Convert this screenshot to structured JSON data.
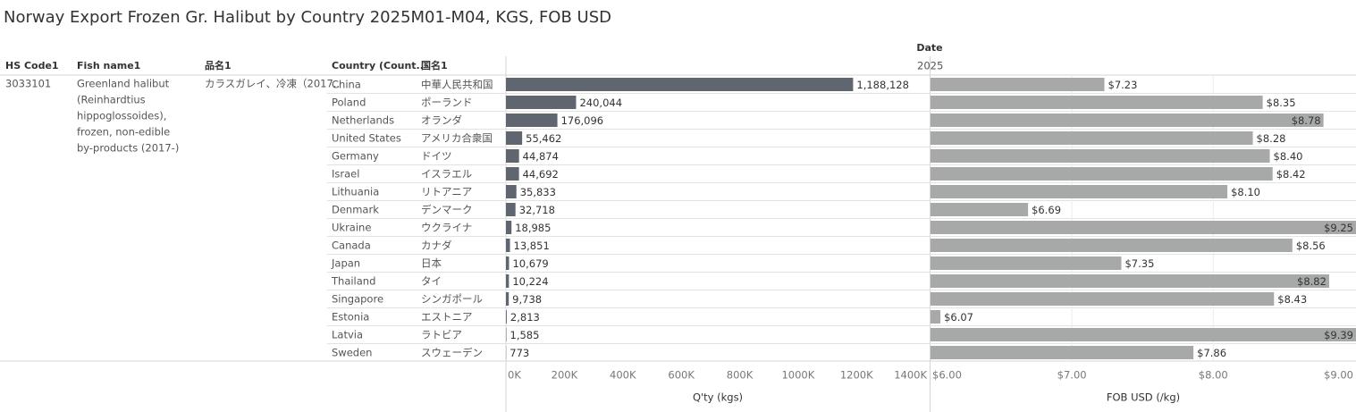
{
  "title": "Norway Export Frozen Gr. Halibut by Country 2025M01-M04, KGS, FOB USD",
  "headers": {
    "hs_code": "HS Code1",
    "fish_name": "Fish name1",
    "product": "品名1",
    "country": "Country (Count..",
    "country_ja": "国名1",
    "date": "Date",
    "year": "2025"
  },
  "hs_code": "3033101",
  "fish_name_lines": [
    "Greenland halibut",
    "(Reinhardtius",
    "hippoglossoides),",
    "frozen, non-edible",
    "by-products (2017-)"
  ],
  "product": "カラスガレイ、冷凍（2017..",
  "countries_ja": [
    "中華人民共和国",
    "ポーランド",
    "オランダ",
    "アメリカ合衆国",
    "ドイツ",
    "イスラエル",
    "リトアニア",
    "デンマーク",
    "ウクライナ",
    "カナダ",
    "日本",
    "タイ",
    "シンガポール",
    "エストニア",
    "ラトビア",
    "スウェーデン"
  ],
  "chart_data": [
    {
      "type": "hbar",
      "x_label": "Q'ty (kgs)",
      "categories": [
        "China",
        "Poland",
        "Netherlands",
        "United States",
        "Germany",
        "Israel",
        "Lithuania",
        "Denmark",
        "Ukraine",
        "Canada",
        "Japan",
        "Thailand",
        "Singapore",
        "Estonia",
        "Latvia",
        "Sweden"
      ],
      "values": [
        1188128,
        240044,
        176096,
        55462,
        44874,
        44692,
        35833,
        32718,
        18985,
        13851,
        10679,
        10224,
        9738,
        2813,
        1585,
        773
      ],
      "value_labels": [
        "1,188,128",
        "240,044",
        "176,096",
        "55,462",
        "44,874",
        "44,692",
        "35,833",
        "32,718",
        "18,985",
        "13,851",
        "10,679",
        "10,224",
        "9,738",
        "2,813",
        "1,585",
        "773"
      ],
      "color": "#5f6670",
      "xlim": [
        0,
        1450000
      ],
      "xticks": [
        {
          "value": 0,
          "label": "0K"
        },
        {
          "value": 200000,
          "label": "200K"
        },
        {
          "value": 400000,
          "label": "400K"
        },
        {
          "value": 600000,
          "label": "600K"
        },
        {
          "value": 800000,
          "label": "800K"
        },
        {
          "value": 1000000,
          "label": "1000K"
        },
        {
          "value": 1200000,
          "label": "1200K"
        },
        {
          "value": 1400000,
          "label": "1400K"
        }
      ],
      "grid": false
    },
    {
      "type": "hbar",
      "x_label": "FOB USD (/kg)",
      "values": [
        7.23,
        8.35,
        8.78,
        8.28,
        8.4,
        8.42,
        8.1,
        6.69,
        9.25,
        8.56,
        7.35,
        8.82,
        8.43,
        6.07,
        9.39,
        7.86
      ],
      "value_labels": [
        "$7.23",
        "$8.35",
        "$8.78",
        "$8.28",
        "$8.40",
        "$8.42",
        "$8.10",
        "$6.69",
        "$9.25",
        "$8.56",
        "$7.35",
        "$8.82",
        "$8.43",
        "$6.07",
        "$9.39",
        "$7.86"
      ],
      "color": "#a7a9a9",
      "xlim": [
        6,
        9.01
      ],
      "xticks": [
        {
          "value": 6,
          "label": "$6.00"
        },
        {
          "value": 7,
          "label": "$7.00"
        },
        {
          "value": 8,
          "label": "$8.00"
        },
        {
          "value": 9,
          "label": "$9.00"
        }
      ],
      "grid": true
    }
  ]
}
